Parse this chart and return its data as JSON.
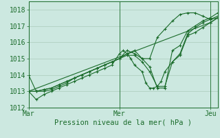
{
  "bg_color": "#cce8e0",
  "grid_color": "#aaccbb",
  "line_color": "#1a6b2a",
  "xlabel": "Pression niveau de la mer( hPa )",
  "xlabel_fontsize": 7.5,
  "tick_fontsize": 7,
  "ylim": [
    1012.0,
    1018.5
  ],
  "xlim": [
    0,
    100
  ],
  "xtick_positions": [
    0,
    48,
    96
  ],
  "xtick_labels": [
    "Mar",
    "Mer",
    "Jeu"
  ],
  "ytick_positions": [
    1012,
    1013,
    1014,
    1015,
    1016,
    1017,
    1018
  ],
  "vline_positions": [
    0,
    48,
    96
  ],
  "series": [
    {
      "x": [
        0,
        4,
        8,
        12,
        16,
        20,
        24,
        28,
        32,
        36,
        40,
        44,
        48,
        52,
        56,
        60,
        64,
        68,
        72,
        76,
        80,
        84,
        88,
        92,
        96,
        100
      ],
      "y": [
        1014.0,
        1013.0,
        1013.0,
        1013.1,
        1013.3,
        1013.5,
        1013.8,
        1014.0,
        1014.2,
        1014.4,
        1014.6,
        1014.8,
        1015.0,
        1015.5,
        1015.3,
        1015.0,
        1015.0,
        1016.3,
        1016.8,
        1017.3,
        1017.7,
        1017.8,
        1017.8,
        1017.6,
        1017.4,
        1017.5
      ]
    },
    {
      "x": [
        0,
        4,
        8,
        12,
        16,
        20,
        24,
        28,
        32,
        36,
        40,
        44,
        48,
        52,
        56,
        60,
        64,
        68,
        72,
        76,
        80,
        84,
        88,
        92,
        96,
        100
      ],
      "y": [
        1013.0,
        1013.0,
        1013.1,
        1013.2,
        1013.4,
        1013.6,
        1013.8,
        1014.0,
        1014.2,
        1014.4,
        1014.6,
        1014.8,
        1015.0,
        1015.2,
        1015.2,
        1014.8,
        1014.2,
        1013.3,
        1013.3,
        1014.8,
        1015.3,
        1016.5,
        1016.9,
        1017.2,
        1017.4,
        1017.6
      ]
    },
    {
      "x": [
        0,
        4,
        8,
        12,
        16,
        20,
        24,
        28,
        32,
        36,
        40,
        44,
        48,
        52,
        56,
        60,
        64,
        68,
        72,
        76,
        80,
        84,
        88,
        92,
        96,
        100
      ],
      "y": [
        1013.0,
        1013.0,
        1013.1,
        1013.2,
        1013.4,
        1013.6,
        1013.8,
        1014.0,
        1014.2,
        1014.4,
        1014.6,
        1014.8,
        1015.0,
        1015.3,
        1015.5,
        1015.0,
        1014.5,
        1013.2,
        1013.2,
        1015.5,
        1015.8,
        1016.7,
        1017.0,
        1017.3,
        1017.5,
        1017.8
      ]
    },
    {
      "x": [
        0,
        4,
        8,
        12,
        16,
        20,
        24,
        28,
        32,
        36,
        40,
        44,
        48,
        50,
        52,
        54,
        56,
        60,
        62,
        64,
        66,
        68,
        70,
        72,
        76,
        80,
        84,
        88,
        92,
        96,
        100
      ],
      "y": [
        1013.0,
        1012.5,
        1012.8,
        1013.0,
        1013.2,
        1013.4,
        1013.6,
        1013.8,
        1014.0,
        1014.2,
        1014.4,
        1014.6,
        1015.3,
        1015.5,
        1015.3,
        1015.0,
        1014.6,
        1014.2,
        1013.5,
        1013.2,
        1013.2,
        1013.3,
        1013.6,
        1014.2,
        1014.8,
        1015.2,
        1016.4,
        1016.6,
        1016.9,
        1017.2,
        1017.5
      ]
    },
    {
      "x": [
        0,
        96,
        100
      ],
      "y": [
        1013.0,
        1017.2,
        1017.5
      ]
    }
  ]
}
